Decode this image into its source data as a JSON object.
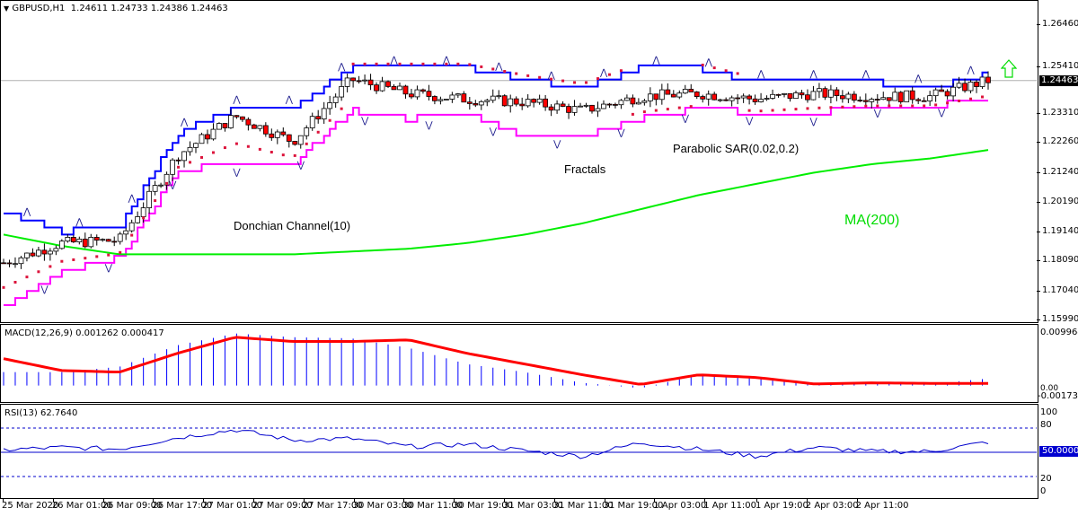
{
  "header": {
    "symbol_label": "GBPUSD,H1",
    "ohlc": "1.24611 1.24733 1.24386 1.24463",
    "triangle": "▼"
  },
  "main_chart": {
    "y_axis_ticks": [
      "1.26460",
      "1.25410",
      "1.24463",
      "1.23310",
      "1.22260",
      "1.21240",
      "1.20190",
      "1.19140",
      "1.18090",
      "1.17040",
      "1.15990"
    ],
    "current_price": "1.24463",
    "annotations": {
      "donchian": "Donchian Channel(10)",
      "fractals": "Fractals",
      "psar": "Parabolic SAR(0.02,0.2)",
      "ma": "MA(200)"
    },
    "signal": "up-arrow"
  },
  "macd": {
    "label": "MACD(12,26,9) 0.001262 0.000417",
    "y_ticks": [
      "0.009964",
      "0.00",
      "-0.001733"
    ]
  },
  "rsi": {
    "label": "RSI(13) 62.7640",
    "y_ticks": [
      "100",
      "80",
      "50.0000",
      "20",
      "0"
    ],
    "level_value": "50.0000"
  },
  "x_axis": {
    "labels": [
      "25 Mar 2020",
      "26 Mar 01:00",
      "26 Mar 09:00",
      "26 Mar 17:00",
      "27 Mar 01:00",
      "27 Mar 09:00",
      "27 Mar 17:00",
      "30 Mar 03:00",
      "30 Mar 11:00",
      "30 Mar 19:00",
      "31 Mar 03:00",
      "31 Mar 11:00",
      "31 Mar 19:00",
      "1 Apr 03:00",
      "1 Apr 11:00",
      "1 Apr 19:00",
      "2 Apr 03:00",
      "2 Apr 11:00"
    ]
  },
  "colors": {
    "donchian_upper": "#0000ff",
    "donchian_lower": "#ff00ff",
    "ma200": "#00ee00",
    "psar": "#dc143c",
    "bear_candle": "#ff0000",
    "bull_candle": "#ffffff",
    "macd_hist": "#0000ff",
    "macd_signal": "#ff0000",
    "rsi_line": "#0000cc",
    "fractal": "#1a1a8c"
  },
  "chart_data": [
    {
      "type": "line",
      "title": "GBPUSD,H1",
      "subtitle": "O 1.24611 H 1.24733 L 1.24386 C 1.24463",
      "xlabel": "",
      "ylabel": "",
      "ylim": [
        1.1599,
        1.2646
      ],
      "x": [
        "25 Mar 2020",
        "26 Mar 01:00",
        "26 Mar 09:00",
        "26 Mar 17:00",
        "27 Mar 01:00",
        "27 Mar 09:00",
        "27 Mar 17:00",
        "30 Mar 03:00",
        "30 Mar 11:00",
        "30 Mar 19:00",
        "31 Mar 03:00",
        "31 Mar 11:00",
        "31 Mar 19:00",
        "1 Apr 03:00",
        "1 Apr 11:00",
        "1 Apr 19:00",
        "2 Apr 03:00",
        "2 Apr 11:00"
      ],
      "series": [
        {
          "name": "Close (approx)",
          "values": [
            1.18,
            1.187,
            1.188,
            1.218,
            1.232,
            1.223,
            1.245,
            1.24,
            1.238,
            1.237,
            1.234,
            1.239,
            1.24,
            1.238,
            1.24,
            1.239,
            1.239,
            1.2446
          ]
        },
        {
          "name": "Donchian Channel(10) upper",
          "values": [
            1.198,
            1.191,
            1.193,
            1.226,
            1.235,
            1.235,
            1.249,
            1.249,
            1.249,
            1.245,
            1.242,
            1.249,
            1.249,
            1.244,
            1.244,
            1.244,
            1.242,
            1.247
          ]
        },
        {
          "name": "Donchian Channel(10) lower",
          "values": [
            1.165,
            1.177,
            1.182,
            1.213,
            1.215,
            1.215,
            1.234,
            1.231,
            1.233,
            1.225,
            1.225,
            1.231,
            1.235,
            1.233,
            1.233,
            1.236,
            1.236,
            1.237
          ]
        },
        {
          "name": "MA(200)",
          "values": [
            1.19,
            1.186,
            1.183,
            1.183,
            1.183,
            1.183,
            1.184,
            1.185,
            1.187,
            1.19,
            1.194,
            1.199,
            1.204,
            1.208,
            1.212,
            1.215,
            1.217,
            1.22
          ]
        }
      ],
      "legend": [
        "Donchian Channel(10)",
        "Fractals",
        "Parabolic SAR(0.02,0.2)",
        "MA(200)"
      ]
    },
    {
      "type": "bar",
      "title": "MACD(12,26,9) 0.001262 0.000417",
      "ylim": [
        -0.001733,
        0.009964
      ],
      "x": [
        "25 Mar 2020",
        "26 Mar 01:00",
        "26 Mar 09:00",
        "26 Mar 17:00",
        "27 Mar 01:00",
        "27 Mar 09:00",
        "27 Mar 17:00",
        "30 Mar 03:00",
        "30 Mar 11:00",
        "30 Mar 19:00",
        "31 Mar 03:00",
        "31 Mar 11:00",
        "31 Mar 19:00",
        "1 Apr 03:00",
        "1 Apr 11:00",
        "1 Apr 19:00",
        "2 Apr 03:00",
        "2 Apr 11:00"
      ],
      "series": [
        {
          "name": "MACD histogram",
          "values": [
            0.0025,
            0.0025,
            0.0035,
            0.0075,
            0.0097,
            0.009,
            0.0088,
            0.007,
            0.004,
            0.0025,
            0.0005,
            -0.0005,
            0.002,
            0.0015,
            0.0002,
            0.0005,
            0.0003,
            0.0013
          ]
        },
        {
          "name": "Signal",
          "values": [
            0.005,
            0.0028,
            0.0025,
            0.006,
            0.009,
            0.0082,
            0.0082,
            0.0085,
            0.006,
            0.004,
            0.002,
            0.0002,
            0.002,
            0.0015,
            0.0003,
            0.0005,
            0.0004,
            0.0004
          ]
        }
      ]
    },
    {
      "type": "line",
      "title": "RSI(13) 62.7640",
      "ylim": [
        0,
        100
      ],
      "levels": [
        20,
        50,
        80
      ],
      "x": [
        "25 Mar 2020",
        "26 Mar 01:00",
        "26 Mar 09:00",
        "26 Mar 17:00",
        "27 Mar 01:00",
        "27 Mar 09:00",
        "27 Mar 17:00",
        "30 Mar 03:00",
        "30 Mar 11:00",
        "30 Mar 19:00",
        "31 Mar 03:00",
        "31 Mar 11:00",
        "31 Mar 19:00",
        "1 Apr 03:00",
        "1 Apr 11:00",
        "1 Apr 19:00",
        "2 Apr 03:00",
        "2 Apr 11:00"
      ],
      "series": [
        {
          "name": "RSI(13)",
          "values": [
            53,
            56,
            54,
            68,
            78,
            65,
            67,
            57,
            60,
            52,
            45,
            62,
            54,
            45,
            56,
            51,
            51,
            62.764
          ]
        }
      ]
    }
  ]
}
